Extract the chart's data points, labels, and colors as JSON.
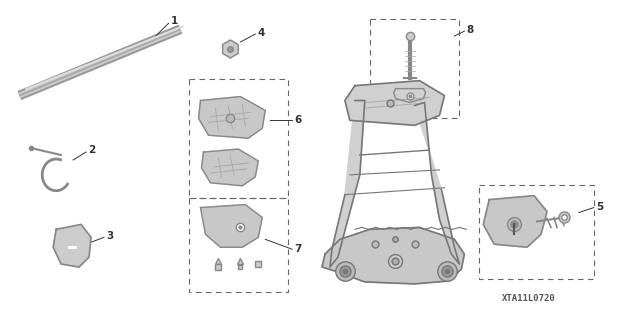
{
  "part_number": "XTA11L0720",
  "background_color": "#ffffff",
  "line_color": "#777777",
  "text_color": "#333333",
  "dashed_box_color": "#666666",
  "label_fontsize": 7.5,
  "part_number_fontsize": 6.5,
  "figsize": [
    6.4,
    3.19
  ],
  "dpi": 100
}
